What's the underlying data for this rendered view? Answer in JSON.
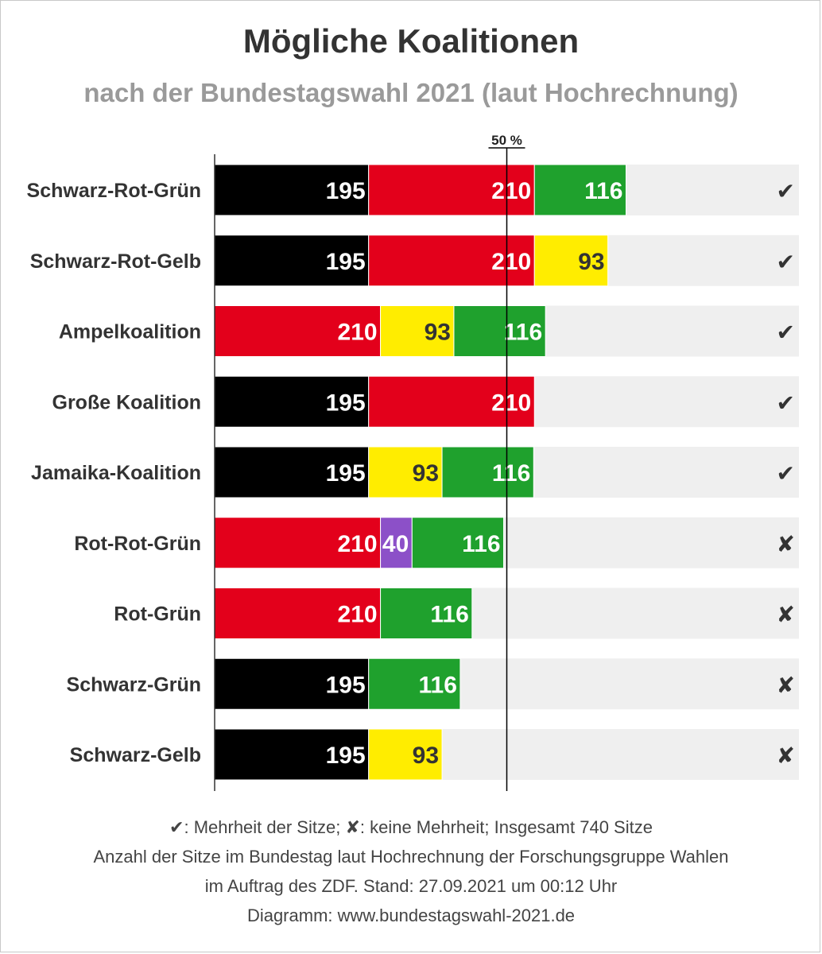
{
  "title": "Mögliche Koalitionen",
  "subtitle": "nach der Bundestagswahl 2021 (laut Hochrechnung)",
  "colors": {
    "cdu": "#000000",
    "spd": "#e3001b",
    "gruene": "#1fa12d",
    "fdp": "#ffed00",
    "linke": "#8c50c8",
    "track": "#efefef",
    "label": "#333333"
  },
  "chart_data": {
    "type": "bar",
    "stacked": true,
    "orientation": "horizontal",
    "xlim": [
      0,
      740
    ],
    "threshold": {
      "value": 370,
      "label": "50 %"
    },
    "majority_symbol": "✔",
    "no_majority_symbol": "✘",
    "categories": [
      "Schwarz-Rot-Grün",
      "Schwarz-Rot-Gelb",
      "Ampelkoalition",
      "Große Koalition",
      "Jamaika-Koalition",
      "Rot-Rot-Grün",
      "Rot-Grün",
      "Schwarz-Grün",
      "Schwarz-Gelb"
    ],
    "rows": [
      {
        "label": "Schwarz-Rot-Grün",
        "majority": true,
        "segments": [
          {
            "party": "cdu",
            "value": 195
          },
          {
            "party": "spd",
            "value": 210
          },
          {
            "party": "gruene",
            "value": 116
          }
        ]
      },
      {
        "label": "Schwarz-Rot-Gelb",
        "majority": true,
        "segments": [
          {
            "party": "cdu",
            "value": 195
          },
          {
            "party": "spd",
            "value": 210
          },
          {
            "party": "fdp",
            "value": 93
          }
        ]
      },
      {
        "label": "Ampelkoalition",
        "majority": true,
        "segments": [
          {
            "party": "spd",
            "value": 210
          },
          {
            "party": "fdp",
            "value": 93
          },
          {
            "party": "gruene",
            "value": 116
          }
        ]
      },
      {
        "label": "Große Koalition",
        "majority": true,
        "segments": [
          {
            "party": "cdu",
            "value": 195
          },
          {
            "party": "spd",
            "value": 210
          }
        ]
      },
      {
        "label": "Jamaika-Koalition",
        "majority": true,
        "segments": [
          {
            "party": "cdu",
            "value": 195
          },
          {
            "party": "fdp",
            "value": 93
          },
          {
            "party": "gruene",
            "value": 116
          }
        ]
      },
      {
        "label": "Rot-Rot-Grün",
        "majority": false,
        "segments": [
          {
            "party": "spd",
            "value": 210
          },
          {
            "party": "linke",
            "value": 40
          },
          {
            "party": "gruene",
            "value": 116
          }
        ]
      },
      {
        "label": "Rot-Grün",
        "majority": false,
        "segments": [
          {
            "party": "spd",
            "value": 210
          },
          {
            "party": "gruene",
            "value": 116
          }
        ]
      },
      {
        "label": "Schwarz-Grün",
        "majority": false,
        "segments": [
          {
            "party": "cdu",
            "value": 195
          },
          {
            "party": "gruene",
            "value": 116
          }
        ]
      },
      {
        "label": "Schwarz-Gelb",
        "majority": false,
        "segments": [
          {
            "party": "cdu",
            "value": 195
          },
          {
            "party": "fdp",
            "value": 93
          }
        ]
      }
    ]
  },
  "footer": {
    "line1": "✔: Mehrheit der Sitze; ✘: keine Mehrheit; Insgesamt 740 Sitze",
    "line2": "Anzahl der Sitze im Bundestag laut Hochrechnung der Forschungsgruppe Wahlen",
    "line3": "im Auftrag des ZDF. Stand: 27.09.2021 um 00:12 Uhr",
    "line4": "Diagramm: www.bundestagswahl-2021.de"
  }
}
